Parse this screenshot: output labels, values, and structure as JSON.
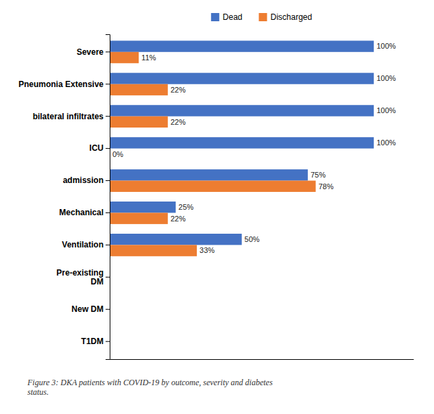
{
  "chart_data": {
    "type": "bar",
    "orientation": "horizontal",
    "categories": [
      "Severe",
      "Pneumonia Extensive",
      "bilateral infiltrates",
      "ICU",
      "admission",
      "Mechanical",
      "Ventilation",
      "Pre-existing\nDM",
      "New DM",
      "T1DM"
    ],
    "series": [
      {
        "name": "Dead",
        "color": "#4472C4",
        "values": [
          100,
          100,
          100,
          100,
          75,
          25,
          50,
          0,
          0,
          0
        ],
        "value_labels": [
          "100%",
          "100%",
          "100%",
          "100%",
          "75%",
          "25%",
          "50%",
          null,
          null,
          null
        ]
      },
      {
        "name": "Discharged",
        "color": "#ED7D31",
        "values": [
          11,
          22,
          22,
          0,
          78,
          22,
          33,
          0,
          0,
          0
        ],
        "value_labels": [
          "11%",
          "22%",
          "22%",
          "0%",
          "78%",
          "22%",
          "33%",
          null,
          null,
          null
        ]
      }
    ],
    "xlim": [
      0,
      115
    ],
    "data_labels": true,
    "tick_labels": "y",
    "legend": "top",
    "grid": false,
    "annotations": [
      "Figure 3: DKA patients with COVID-19 by outcome, severity and diabetes\nstatus."
    ]
  }
}
